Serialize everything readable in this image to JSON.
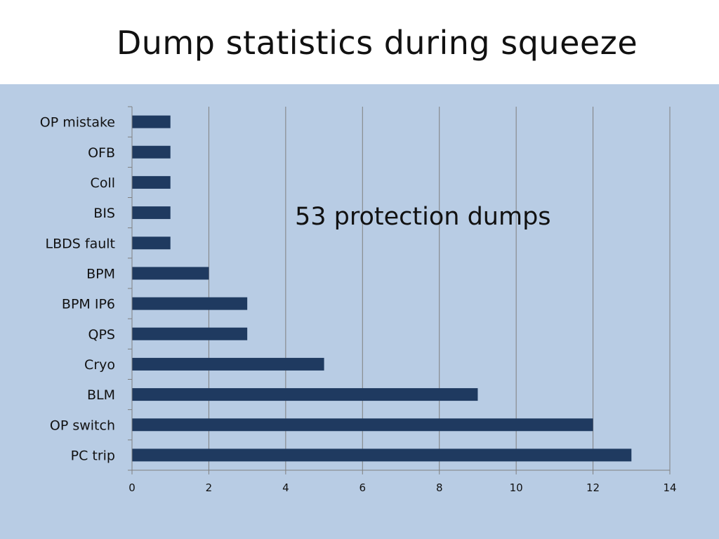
{
  "slide": {
    "title": "Dump statistics during squeeze"
  },
  "colors": {
    "panel_background": "#b8cce4",
    "bar_fill": "#1f3a60",
    "gridline": "#7f7f7f"
  },
  "chart_data": {
    "type": "bar",
    "orientation": "horizontal",
    "title": "",
    "xlabel": "",
    "ylabel": "",
    "xlim": [
      0,
      14
    ],
    "x_ticks": [
      0,
      2,
      4,
      6,
      8,
      10,
      12,
      14
    ],
    "grid": "vertical",
    "categories": [
      "OP mistake",
      "OFB",
      "Coll",
      "BIS",
      "LBDS fault",
      "BPM",
      "BPM IP6",
      "QPS",
      "Cryo",
      "BLM",
      "OP switch",
      "PC trip"
    ],
    "values": [
      1,
      1,
      1,
      1,
      1,
      2,
      3,
      3,
      5,
      9,
      12,
      13
    ],
    "annotation": "53 protection dumps"
  }
}
